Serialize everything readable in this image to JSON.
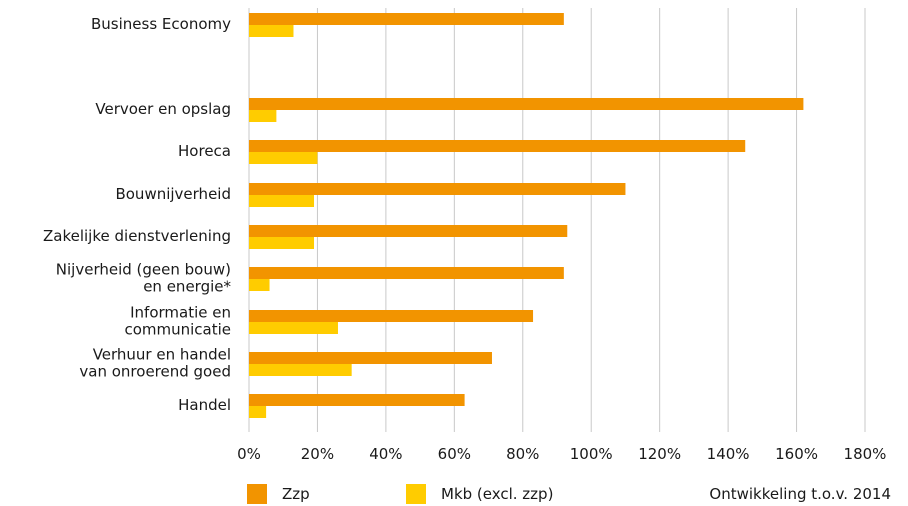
{
  "chart_data": {
    "type": "bar",
    "orientation": "horizontal",
    "categories": [
      [
        "Business Economy"
      ],
      [
        "Vervoer en opslag"
      ],
      [
        "Horeca"
      ],
      [
        "Bouwnijverheid"
      ],
      [
        "Zakelijke dienstverlening"
      ],
      [
        "Nijverheid (geen bouw)",
        "en energie*"
      ],
      [
        "Informatie en",
        "communicatie"
      ],
      [
        "Verhuur en handel",
        "van onroerend goed"
      ],
      [
        "Handel"
      ]
    ],
    "series": [
      {
        "name": "Zzp",
        "color": "#f29400",
        "values": [
          92,
          162,
          145,
          110,
          93,
          92,
          83,
          71,
          63
        ]
      },
      {
        "name": "Mkb (excl. zzp)",
        "color": "#ffcc00",
        "values": [
          13,
          8,
          20,
          19,
          19,
          6,
          26,
          30,
          5
        ]
      }
    ],
    "xlim": [
      0,
      180
    ],
    "xticks": [
      "0%",
      "20%",
      "40%",
      "60%",
      "80%",
      "100%",
      "120%",
      "140%",
      "160%",
      "180%"
    ],
    "grid": "vertical",
    "legend_position": "bottom",
    "annotation": "Ontwikkeling t.o.v. 2014"
  }
}
